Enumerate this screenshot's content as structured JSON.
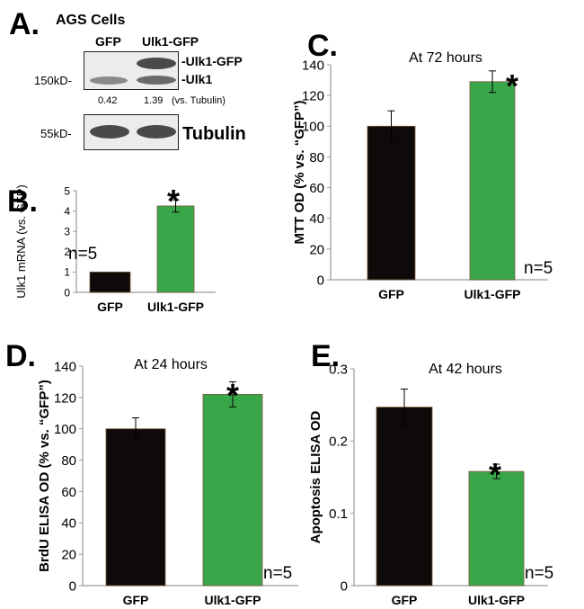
{
  "panel_a": {
    "letter": "A.",
    "title": "AGS Cells",
    "lanes": [
      "GFP",
      "Ulk1-GFP"
    ],
    "band_labels": [
      "-Ulk1-GFP",
      "-Ulk1"
    ],
    "mw_top": "150kD-",
    "mw_bottom": "55kD-",
    "ratio_gfp": "0.42",
    "ratio_ulk": "1.39",
    "ratio_note": "(vs. Tubulin)",
    "tubulin_label": "Tubulin"
  },
  "chart_data": [
    {
      "id": "B",
      "type": "bar",
      "letter": "B.",
      "categories": [
        "GFP",
        "Ulk1-GFP"
      ],
      "values": [
        1.0,
        4.25
      ],
      "errors": [
        0.0,
        0.3
      ],
      "ylabel": "Ulk1 mRNA (vs. GFP)",
      "ylim": [
        0,
        5
      ],
      "yticks": [
        "0",
        "1",
        "2",
        "3",
        "4",
        "5"
      ],
      "annotation": "n=5",
      "significance": "*",
      "colors": [
        "#0e0a0a",
        "#3aa64a"
      ]
    },
    {
      "id": "C",
      "type": "bar",
      "letter": "C.",
      "title": "At 72 hours",
      "categories": [
        "GFP",
        "Ulk1-GFP"
      ],
      "values": [
        100,
        129
      ],
      "errors": [
        10,
        7
      ],
      "ylabel": "MTT OD (% vs. “GFP”)",
      "ylim": [
        0,
        140
      ],
      "yticks": [
        "0",
        "20",
        "40",
        "60",
        "80",
        "100",
        "120",
        "140"
      ],
      "annotation": "n=5",
      "significance": "*",
      "colors": [
        "#0e0a0a",
        "#3aa64a"
      ]
    },
    {
      "id": "D",
      "type": "bar",
      "letter": "D.",
      "title": "At 24 hours",
      "categories": [
        "GFP",
        "Ulk1-GFP"
      ],
      "values": [
        100,
        122
      ],
      "errors": [
        7,
        8
      ],
      "ylabel": "BrdU ELISA OD (% vs. “GFP”)",
      "ylim": [
        0,
        140
      ],
      "yticks": [
        "0",
        "20",
        "40",
        "60",
        "80",
        "100",
        "120",
        "140"
      ],
      "annotation": "n=5",
      "significance": "*",
      "colors": [
        "#0e0a0a",
        "#3aa64a"
      ]
    },
    {
      "id": "E",
      "type": "bar",
      "letter": "E.",
      "title": "At 42 hours",
      "categories": [
        "GFP",
        "Ulk1-GFP"
      ],
      "values": [
        0.247,
        0.158
      ],
      "errors": [
        0.025,
        0.01
      ],
      "ylabel": "Apoptosis ELISA OD",
      "ylim": [
        0,
        0.3
      ],
      "yticks": [
        "0",
        "0.1",
        "0.2",
        "0.3"
      ],
      "annotation": "n=5",
      "significance": "*",
      "colors": [
        "#0e0a0a",
        "#3aa64a"
      ]
    }
  ]
}
